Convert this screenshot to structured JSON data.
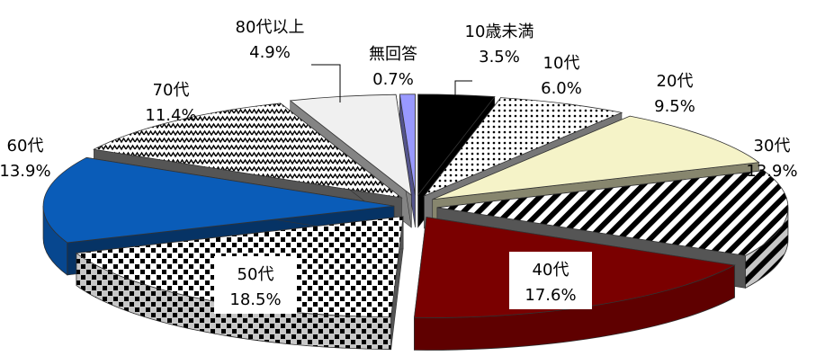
{
  "chart_data": {
    "type": "pie",
    "title": "",
    "categories": [
      "10歳未満",
      "10代",
      "20代",
      "30代",
      "40代",
      "50代",
      "60代",
      "70代",
      "80代以上",
      "無回答"
    ],
    "values": [
      3.5,
      6.0,
      9.5,
      13.9,
      17.6,
      18.5,
      13.9,
      11.4,
      4.9,
      0.7
    ],
    "value_labels": [
      "3.5%",
      "6.0%",
      "9.5%",
      "13.9%",
      "17.6%",
      "18.5%",
      "13.9%",
      "11.4%",
      "4.9%",
      "0.7%"
    ],
    "style": "3d-exploded",
    "legend": "none",
    "colors": [
      "#000000",
      "#d8d8d8",
      "#f5f3c8",
      "#ffffff",
      "#7a0000",
      "#ffffff",
      "#0a5cb8",
      "#ffffff",
      "#f0f0f0",
      "#9999ff"
    ],
    "patterns": [
      "solid",
      "dots",
      "solid",
      "diagonal-stripes",
      "solid",
      "checker",
      "solid",
      "zigzag",
      "solid",
      "solid"
    ]
  }
}
